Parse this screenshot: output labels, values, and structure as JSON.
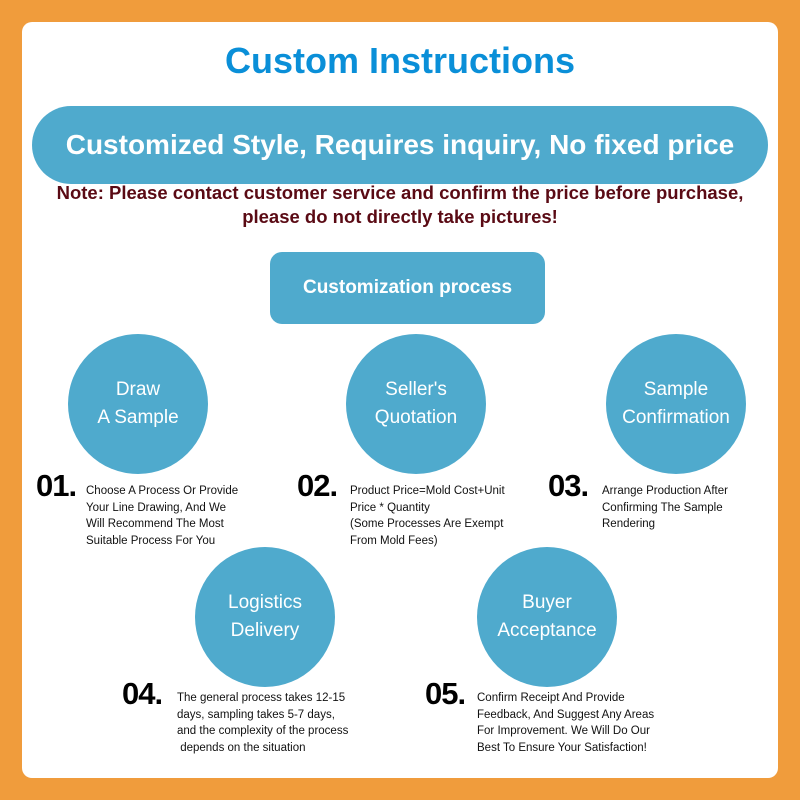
{
  "title": "Custom Instructions",
  "banner": "Customized Style, Requires inquiry, No fixed price",
  "note": {
    "line1": "Note: Please contact customer service and confirm the price before purchase,",
    "line2": "please do not directly take pictures!"
  },
  "process_label": "Customization process",
  "colors": {
    "background": "#f09c3c",
    "accent": "#4faacd",
    "title": "#0a8fd8",
    "note": "#5a0a14"
  },
  "steps": [
    {
      "num": "01.",
      "title1": "Draw",
      "title2": "A Sample",
      "desc": [
        "Choose A Process Or Provide",
        "Your Line Drawing, And We",
        "Will Recommend The Most",
        "Suitable Process For You"
      ]
    },
    {
      "num": "02.",
      "title1": "Seller's",
      "title2": "Quotation",
      "desc": [
        "Product Price=Mold Cost+Unit",
        "Price * Quantity",
        "(Some Processes Are Exempt",
        "From Mold Fees)"
      ]
    },
    {
      "num": "03.",
      "title1": "Sample",
      "title2": "Confirmation",
      "desc": [
        "Arrange Production After",
        "Confirming The Sample",
        "Rendering"
      ]
    },
    {
      "num": "04.",
      "title1": "Logistics",
      "title2": "Delivery",
      "desc": [
        "The general process takes 12-15",
        "days, sampling takes 5-7 days,",
        "and the complexity of the process",
        " depends on the situation"
      ]
    },
    {
      "num": "05.",
      "title1": "Buyer",
      "title2": "Acceptance",
      "desc": [
        "Confirm Receipt And Provide",
        "Feedback, And Suggest Any Areas",
        "For Improvement. We Will Do Our",
        "Best To Ensure Your Satisfaction!"
      ]
    }
  ]
}
